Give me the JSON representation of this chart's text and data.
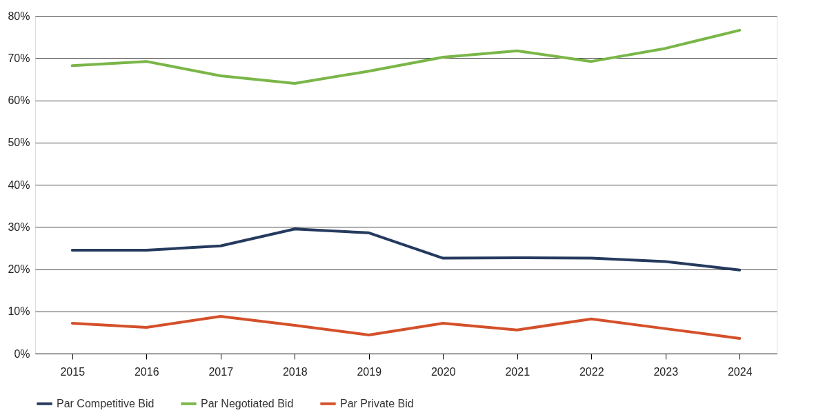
{
  "chart_data": {
    "type": "line",
    "categories": [
      "2015",
      "2016",
      "2017",
      "2018",
      "2019",
      "2020",
      "2021",
      "2022",
      "2023",
      "2024"
    ],
    "series": [
      {
        "name": "Par Competitive Bid",
        "color": "#253a5e",
        "values": [
          24.5,
          24.5,
          25.5,
          29.5,
          28.6,
          22.6,
          22.7,
          22.6,
          21.8,
          19.8
        ]
      },
      {
        "name": "Par Negotiated Bid",
        "color": "#7ab648",
        "values": [
          68.2,
          69.2,
          65.8,
          64.0,
          66.9,
          70.2,
          71.7,
          69.2,
          72.3,
          76.6
        ]
      },
      {
        "name": "Par Private Bid",
        "color": "#d4502a",
        "values": [
          7.2,
          6.2,
          8.8,
          6.7,
          4.4,
          7.2,
          5.6,
          8.2,
          5.9,
          3.6
        ]
      }
    ],
    "ylim": [
      0,
      80
    ],
    "yticks": [
      {
        "value": 0,
        "label": "0%"
      },
      {
        "value": 10,
        "label": "10%"
      },
      {
        "value": 20,
        "label": "20%"
      },
      {
        "value": 30,
        "label": "30%"
      },
      {
        "value": 40,
        "label": "40%"
      },
      {
        "value": 50,
        "label": "50%"
      },
      {
        "value": 60,
        "label": "60%"
      },
      {
        "value": 70,
        "label": "70%"
      },
      {
        "value": 80,
        "label": "80%"
      }
    ],
    "grid": "y",
    "legend": "bottom",
    "marker": "none",
    "line_style": "solid"
  }
}
